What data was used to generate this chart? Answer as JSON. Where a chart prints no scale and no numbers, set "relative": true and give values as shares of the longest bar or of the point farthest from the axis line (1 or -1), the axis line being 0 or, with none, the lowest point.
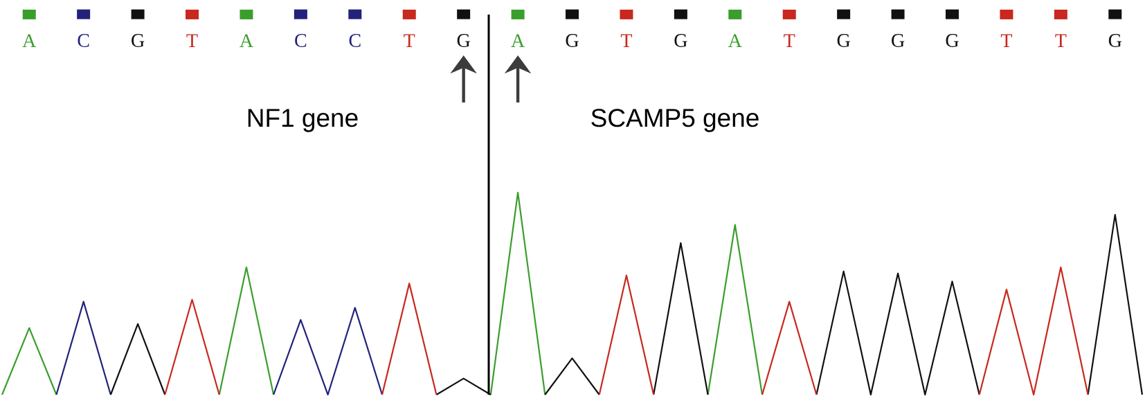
{
  "chart_data": {
    "type": "line",
    "relative": true,
    "marker": "none",
    "line_style": "solid",
    "categories": [
      null,
      "A",
      null,
      "C",
      null,
      "G",
      null,
      "T",
      null,
      "A",
      null,
      "C",
      null,
      "C",
      null,
      "T",
      null,
      "G",
      null,
      "A",
      null,
      "G",
      null,
      "T",
      null,
      "G",
      null,
      "A",
      null,
      "T",
      null,
      "G",
      null,
      "G",
      null,
      "G",
      null,
      "T",
      null,
      "T",
      null,
      "G",
      null
    ],
    "series": [
      {
        "color": "#3a9e2c",
        "values": [
          0,
          0.33,
          0,
          null,
          null,
          null,
          null,
          null,
          0,
          0.63,
          0,
          null,
          null,
          null,
          null,
          null,
          null,
          null,
          0,
          1,
          0,
          null,
          null,
          null,
          null,
          null,
          0,
          0.84,
          0,
          null,
          null,
          null,
          null,
          null,
          null,
          null,
          null,
          null,
          null,
          null,
          null,
          null,
          null
        ]
      },
      {
        "color": "#22227a",
        "values": [
          null,
          null,
          0,
          0.46,
          0,
          null,
          null,
          null,
          null,
          null,
          0,
          0.37,
          0,
          0.43,
          0,
          null,
          null,
          null,
          null,
          null,
          null,
          null,
          null,
          null,
          null,
          null,
          null,
          null,
          null,
          null,
          null,
          null,
          null,
          null,
          null,
          null,
          null,
          null,
          null,
          null,
          null,
          null,
          null
        ]
      },
      {
        "color": "#111111",
        "values": [
          null,
          null,
          null,
          null,
          0,
          0.35,
          0,
          null,
          null,
          null,
          null,
          null,
          null,
          null,
          null,
          null,
          0,
          0.08,
          0,
          null,
          0,
          0.18,
          0,
          null,
          0,
          0.75,
          0,
          null,
          null,
          null,
          0,
          0.61,
          0,
          0.6,
          0,
          0.56,
          0,
          null,
          null,
          null,
          0,
          0.89,
          0
        ]
      },
      {
        "color": "#c8281e",
        "values": [
          null,
          null,
          null,
          null,
          null,
          null,
          0,
          0.47,
          0,
          null,
          null,
          null,
          null,
          null,
          0,
          0.55,
          0,
          null,
          null,
          null,
          null,
          null,
          0,
          0.59,
          0,
          null,
          null,
          null,
          0,
          0.46,
          0,
          null,
          null,
          null,
          null,
          null,
          0,
          0.52,
          0,
          0.63,
          0,
          null,
          null
        ]
      }
    ],
    "annotations": [
      "NF1 gene",
      "SCAMP5 gene"
    ]
  }
}
